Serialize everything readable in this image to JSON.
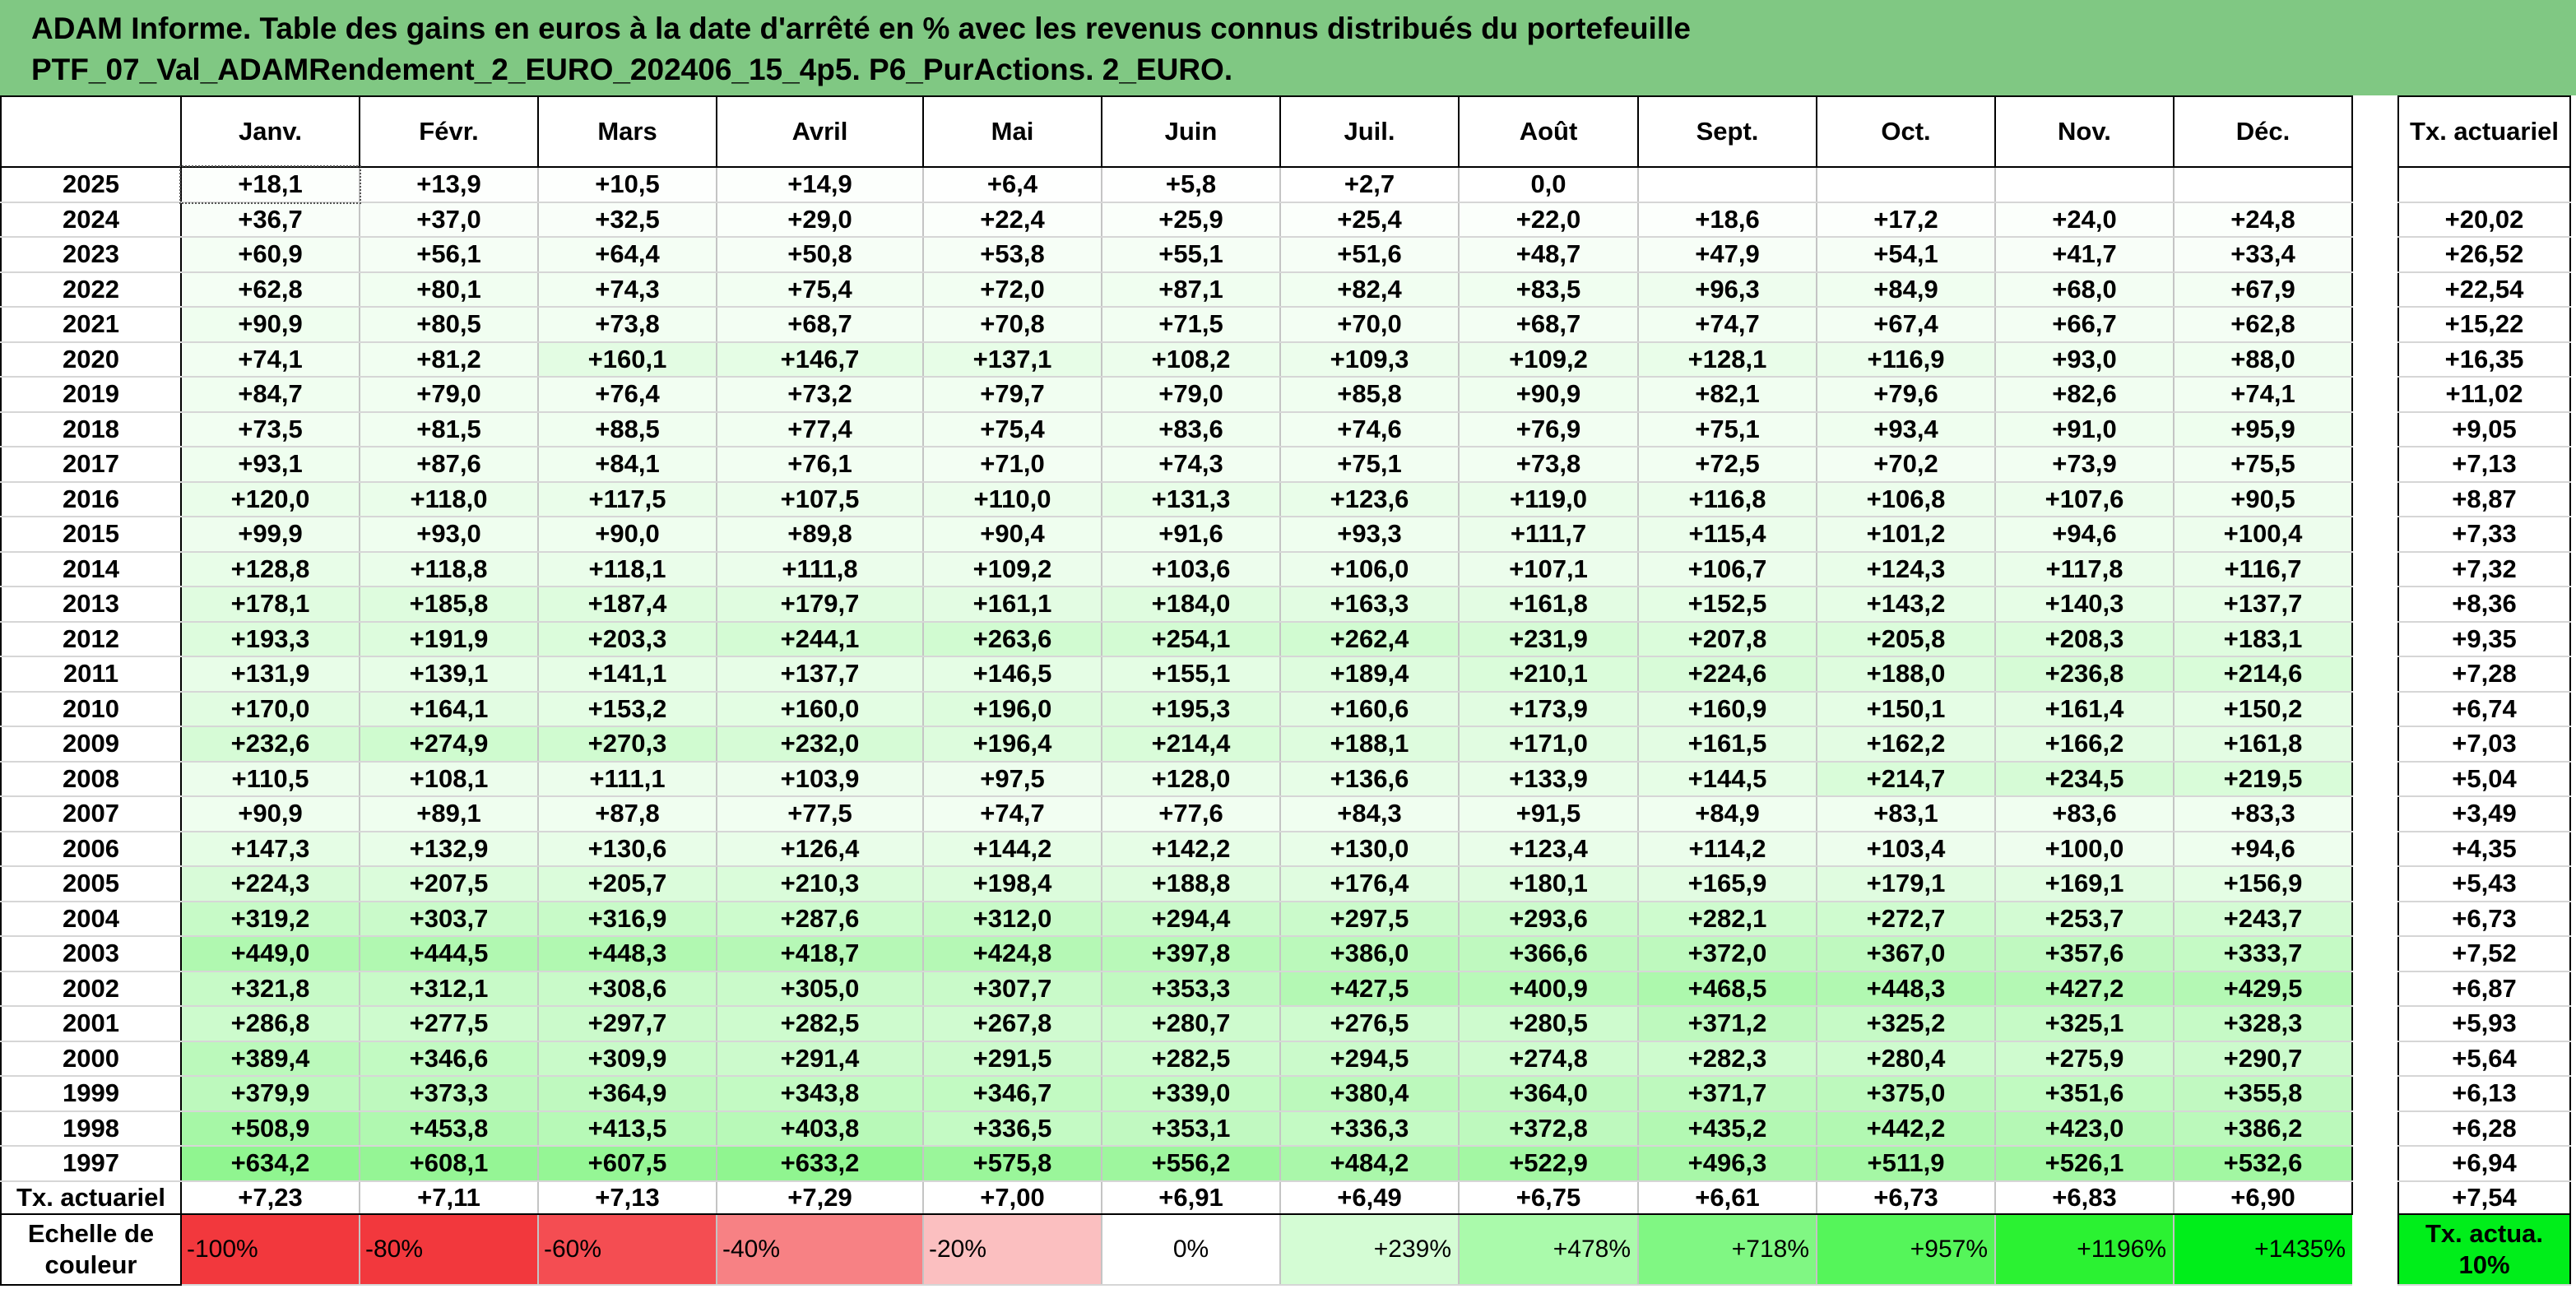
{
  "title_line1": "ADAM Informe. Table des gains en euros à la date d'arrêté en % avec les revenus connus distribués du portefeuille",
  "title_line2": "PTF_07_Val_ADAMRendement_2_EURO_202406_15_4p5. P6_PurActions. 2_EURO.",
  "months": [
    "Janv.",
    "Févr.",
    "Mars",
    "Avril",
    "Mai",
    "Juin",
    "Juil.",
    "Août",
    "Sept.",
    "Oct.",
    "Nov.",
    "Déc."
  ],
  "rate_header": "Tx. actuariel",
  "rows": [
    {
      "year": "2025",
      "values": [
        "+18,1",
        "+13,9",
        "+10,5",
        "+14,9",
        "+6,4",
        "+5,8",
        "+2,7",
        "0,0",
        "",
        "",
        "",
        ""
      ],
      "rate": ""
    },
    {
      "year": "2024",
      "values": [
        "+36,7",
        "+37,0",
        "+32,5",
        "+29,0",
        "+22,4",
        "+25,9",
        "+25,4",
        "+22,0",
        "+18,6",
        "+17,2",
        "+24,0",
        "+24,8"
      ],
      "rate": "+20,02"
    },
    {
      "year": "2023",
      "values": [
        "+60,9",
        "+56,1",
        "+64,4",
        "+50,8",
        "+53,8",
        "+55,1",
        "+51,6",
        "+48,7",
        "+47,9",
        "+54,1",
        "+41,7",
        "+33,4"
      ],
      "rate": "+26,52"
    },
    {
      "year": "2022",
      "values": [
        "+62,8",
        "+80,1",
        "+74,3",
        "+75,4",
        "+72,0",
        "+87,1",
        "+82,4",
        "+83,5",
        "+96,3",
        "+84,9",
        "+68,0",
        "+67,9"
      ],
      "rate": "+22,54"
    },
    {
      "year": "2021",
      "values": [
        "+90,9",
        "+80,5",
        "+73,8",
        "+68,7",
        "+70,8",
        "+71,5",
        "+70,0",
        "+68,7",
        "+74,7",
        "+67,4",
        "+66,7",
        "+62,8"
      ],
      "rate": "+15,22"
    },
    {
      "year": "2020",
      "values": [
        "+74,1",
        "+81,2",
        "+160,1",
        "+146,7",
        "+137,1",
        "+108,2",
        "+109,3",
        "+109,2",
        "+128,1",
        "+116,9",
        "+93,0",
        "+88,0"
      ],
      "rate": "+16,35"
    },
    {
      "year": "2019",
      "values": [
        "+84,7",
        "+79,0",
        "+76,4",
        "+73,2",
        "+79,7",
        "+79,0",
        "+85,8",
        "+90,9",
        "+82,1",
        "+79,6",
        "+82,6",
        "+74,1"
      ],
      "rate": "+11,02"
    },
    {
      "year": "2018",
      "values": [
        "+73,5",
        "+81,5",
        "+88,5",
        "+77,4",
        "+75,4",
        "+83,6",
        "+74,6",
        "+76,9",
        "+75,1",
        "+93,4",
        "+91,0",
        "+95,9"
      ],
      "rate": "+9,05"
    },
    {
      "year": "2017",
      "values": [
        "+93,1",
        "+87,6",
        "+84,1",
        "+76,1",
        "+71,0",
        "+74,3",
        "+75,1",
        "+73,8",
        "+72,5",
        "+70,2",
        "+73,9",
        "+75,5"
      ],
      "rate": "+7,13"
    },
    {
      "year": "2016",
      "values": [
        "+120,0",
        "+118,0",
        "+117,5",
        "+107,5",
        "+110,0",
        "+131,3",
        "+123,6",
        "+119,0",
        "+116,8",
        "+106,8",
        "+107,6",
        "+90,5"
      ],
      "rate": "+8,87"
    },
    {
      "year": "2015",
      "values": [
        "+99,9",
        "+93,0",
        "+90,0",
        "+89,8",
        "+90,4",
        "+91,6",
        "+93,3",
        "+111,7",
        "+115,4",
        "+101,2",
        "+94,6",
        "+100,4"
      ],
      "rate": "+7,33"
    },
    {
      "year": "2014",
      "values": [
        "+128,8",
        "+118,8",
        "+118,1",
        "+111,8",
        "+109,2",
        "+103,6",
        "+106,0",
        "+107,1",
        "+106,7",
        "+124,3",
        "+117,8",
        "+116,7"
      ],
      "rate": "+7,32"
    },
    {
      "year": "2013",
      "values": [
        "+178,1",
        "+185,8",
        "+187,4",
        "+179,7",
        "+161,1",
        "+184,0",
        "+163,3",
        "+161,8",
        "+152,5",
        "+143,2",
        "+140,3",
        "+137,7"
      ],
      "rate": "+8,36"
    },
    {
      "year": "2012",
      "values": [
        "+193,3",
        "+191,9",
        "+203,3",
        "+244,1",
        "+263,6",
        "+254,1",
        "+262,4",
        "+231,9",
        "+207,8",
        "+205,8",
        "+208,3",
        "+183,1"
      ],
      "rate": "+9,35"
    },
    {
      "year": "2011",
      "values": [
        "+131,9",
        "+139,1",
        "+141,1",
        "+137,7",
        "+146,5",
        "+155,1",
        "+189,4",
        "+210,1",
        "+224,6",
        "+188,0",
        "+236,8",
        "+214,6"
      ],
      "rate": "+7,28"
    },
    {
      "year": "2010",
      "values": [
        "+170,0",
        "+164,1",
        "+153,2",
        "+160,0",
        "+196,0",
        "+195,3",
        "+160,6",
        "+173,9",
        "+160,9",
        "+150,1",
        "+161,4",
        "+150,2"
      ],
      "rate": "+6,74"
    },
    {
      "year": "2009",
      "values": [
        "+232,6",
        "+274,9",
        "+270,3",
        "+232,0",
        "+196,4",
        "+214,4",
        "+188,1",
        "+171,0",
        "+161,5",
        "+162,2",
        "+166,2",
        "+161,8"
      ],
      "rate": "+7,03"
    },
    {
      "year": "2008",
      "values": [
        "+110,5",
        "+108,1",
        "+111,1",
        "+103,9",
        "+97,5",
        "+128,0",
        "+136,6",
        "+133,9",
        "+144,5",
        "+214,7",
        "+234,5",
        "+219,5"
      ],
      "rate": "+5,04"
    },
    {
      "year": "2007",
      "values": [
        "+90,9",
        "+89,1",
        "+87,8",
        "+77,5",
        "+74,7",
        "+77,6",
        "+84,3",
        "+91,5",
        "+84,9",
        "+83,1",
        "+83,6",
        "+83,3"
      ],
      "rate": "+3,49"
    },
    {
      "year": "2006",
      "values": [
        "+147,3",
        "+132,9",
        "+130,6",
        "+126,4",
        "+144,2",
        "+142,2",
        "+130,0",
        "+123,4",
        "+114,2",
        "+103,4",
        "+100,0",
        "+94,6"
      ],
      "rate": "+4,35"
    },
    {
      "year": "2005",
      "values": [
        "+224,3",
        "+207,5",
        "+205,7",
        "+210,3",
        "+198,4",
        "+188,8",
        "+176,4",
        "+180,1",
        "+165,9",
        "+179,1",
        "+169,1",
        "+156,9"
      ],
      "rate": "+5,43"
    },
    {
      "year": "2004",
      "values": [
        "+319,2",
        "+303,7",
        "+316,9",
        "+287,6",
        "+312,0",
        "+294,4",
        "+297,5",
        "+293,6",
        "+282,1",
        "+272,7",
        "+253,7",
        "+243,7"
      ],
      "rate": "+6,73"
    },
    {
      "year": "2003",
      "values": [
        "+449,0",
        "+444,5",
        "+448,3",
        "+418,7",
        "+424,8",
        "+397,8",
        "+386,0",
        "+366,6",
        "+372,0",
        "+367,0",
        "+357,6",
        "+333,7"
      ],
      "rate": "+7,52"
    },
    {
      "year": "2002",
      "values": [
        "+321,8",
        "+312,1",
        "+308,6",
        "+305,0",
        "+307,7",
        "+353,3",
        "+427,5",
        "+400,9",
        "+468,5",
        "+448,3",
        "+427,2",
        "+429,5"
      ],
      "rate": "+6,87"
    },
    {
      "year": "2001",
      "values": [
        "+286,8",
        "+277,5",
        "+297,7",
        "+282,5",
        "+267,8",
        "+280,7",
        "+276,5",
        "+280,5",
        "+371,2",
        "+325,2",
        "+325,1",
        "+328,3"
      ],
      "rate": "+5,93"
    },
    {
      "year": "2000",
      "values": [
        "+389,4",
        "+346,6",
        "+309,9",
        "+291,4",
        "+291,5",
        "+282,5",
        "+294,5",
        "+274,8",
        "+282,3",
        "+280,4",
        "+275,9",
        "+290,7"
      ],
      "rate": "+5,64"
    },
    {
      "year": "1999",
      "values": [
        "+379,9",
        "+373,3",
        "+364,9",
        "+343,8",
        "+346,7",
        "+339,0",
        "+380,4",
        "+364,0",
        "+371,7",
        "+375,0",
        "+351,6",
        "+355,8"
      ],
      "rate": "+6,13"
    },
    {
      "year": "1998",
      "values": [
        "+508,9",
        "+453,8",
        "+413,5",
        "+403,8",
        "+336,5",
        "+353,1",
        "+336,3",
        "+372,8",
        "+435,2",
        "+442,2",
        "+423,0",
        "+386,2"
      ],
      "rate": "+6,28"
    },
    {
      "year": "1997",
      "values": [
        "+634,2",
        "+608,1",
        "+607,5",
        "+633,2",
        "+575,8",
        "+556,2",
        "+484,2",
        "+522,9",
        "+496,3",
        "+511,9",
        "+526,1",
        "+532,6"
      ],
      "rate": "+6,94"
    }
  ],
  "total_row": {
    "label": "Tx. actuariel",
    "values": [
      "+7,23",
      "+7,11",
      "+7,13",
      "+7,29",
      "+7,00",
      "+6,91",
      "+6,49",
      "+6,75",
      "+6,61",
      "+6,73",
      "+6,83",
      "+6,90"
    ],
    "rate": "+7,54"
  },
  "scale": {
    "label": "Echelle de couleur",
    "items": [
      {
        "text": "-100%",
        "color": "#f2383d"
      },
      {
        "text": "-80%",
        "color": "#f2383d"
      },
      {
        "text": "-60%",
        "color": "#f44d52"
      },
      {
        "text": "-40%",
        "color": "#f78184"
      },
      {
        "text": "-20%",
        "color": "#fbbfc0"
      },
      {
        "text": "0%",
        "color": "#ffffff"
      },
      {
        "text": "+239%",
        "color": "#d4fcd4"
      },
      {
        "text": "+478%",
        "color": "#aafaab"
      },
      {
        "text": "+718%",
        "color": "#80f783"
      },
      {
        "text": "+957%",
        "color": "#55f55a"
      },
      {
        "text": "+1196%",
        "color": "#2bf232"
      },
      {
        "text": "+1435%",
        "color": "#00ee1a"
      }
    ],
    "rate_label": "Tx. actua. 10%",
    "rate_color": "#00ee1a"
  },
  "colors": {
    "header_bg": "#80c883",
    "heat_low": "#ffffff",
    "heat_high": "#8ff58f"
  }
}
